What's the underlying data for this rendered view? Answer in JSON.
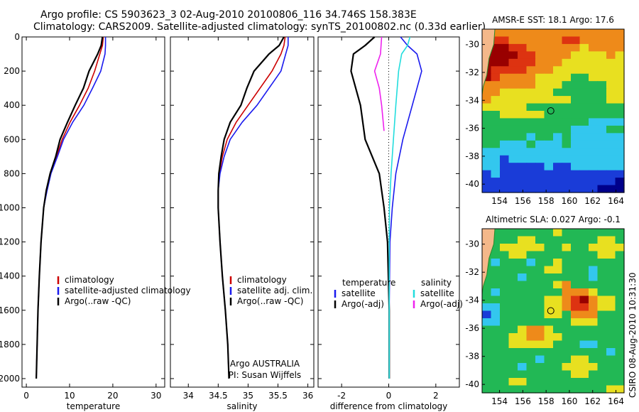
{
  "header": {
    "line1": "Argo profile: CS 5903623_3 02-Aug-2010 20100806_116 34.746S 158.383E",
    "line2": "Climatology: CARS2009. Satellite-adjusted climatology: synTS_20100802.nc (0.33d earlier)"
  },
  "credit": "CSIRO 08-Aug-2010 10:31:30",
  "colors": {
    "red": "#cc0000",
    "blue": "#1a1aee",
    "black": "#000000",
    "cyan": "#22dddd",
    "magenta": "#ee22ee"
  },
  "chart_data": [
    {
      "type": "line",
      "panel": "temperature",
      "xlabel": "temperature",
      "ylabel": "",
      "xlim": [
        -1,
        32
      ],
      "ylim": [
        2050,
        0
      ],
      "xticks": [
        "0",
        "10",
        "20",
        "30"
      ],
      "yticks": [
        "0",
        "200",
        "400",
        "600",
        "800",
        "1000",
        "1200",
        "1400",
        "1600",
        "1800",
        "2000"
      ],
      "legend": [
        "climatology",
        "satellite-adjusted climatology",
        "Argo(..raw -QC)"
      ],
      "series": [
        {
          "name": "climatology",
          "color": "red",
          "x": [
            17.8,
            17.6,
            17.0,
            15.8,
            14.3,
            12.3,
            10.1,
            8.3,
            7.0,
            5.6,
            4.7,
            4.0,
            3.4,
            3.0,
            2.7,
            2.5,
            2.3
          ],
          "y": [
            0,
            50,
            100,
            200,
            300,
            400,
            500,
            600,
            700,
            800,
            900,
            1000,
            1200,
            1400,
            1600,
            1800,
            2000
          ]
        },
        {
          "name": "satellite-adjusted climatology",
          "color": "blue",
          "x": [
            18.3,
            18.3,
            18.2,
            17.2,
            15.3,
            13.3,
            10.7,
            8.6,
            7.2,
            5.7,
            4.8,
            4.0,
            3.4,
            3.0,
            2.7,
            2.5,
            2.3
          ],
          "y": [
            0,
            50,
            100,
            200,
            300,
            400,
            500,
            600,
            700,
            800,
            900,
            1000,
            1200,
            1400,
            1600,
            1800,
            2000
          ]
        },
        {
          "name": "Argo(..raw -QC)",
          "color": "black",
          "x": [
            17.6,
            17.3,
            16.5,
            14.5,
            13.2,
            11.3,
            9.5,
            7.8,
            6.8,
            5.5,
            4.6,
            4.0,
            3.4,
            3.0,
            2.7,
            2.5,
            2.3
          ],
          "y": [
            0,
            50,
            100,
            200,
            300,
            400,
            500,
            600,
            700,
            800,
            900,
            1000,
            1200,
            1400,
            1600,
            1800,
            2000
          ]
        }
      ]
    },
    {
      "type": "line",
      "panel": "salinity",
      "xlabel": "salinity",
      "ylabel": "",
      "xlim": [
        33.7,
        36.1
      ],
      "ylim": [
        2050,
        0
      ],
      "xticks": [
        "34",
        "34.5",
        "35",
        "35.5",
        "36"
      ],
      "legend": [
        "climatology",
        "satellite adj. clim.",
        "Argo(..raw -QC)"
      ],
      "annotations": [
        "Argo AUSTRALIA",
        "PI: Susan Wijffels"
      ],
      "series": [
        {
          "name": "climatology",
          "color": "red",
          "x": [
            35.62,
            35.6,
            35.55,
            35.4,
            35.2,
            35.0,
            34.8,
            34.65,
            34.57,
            34.52,
            34.5,
            34.5,
            34.53,
            34.57,
            34.62,
            34.66,
            34.68
          ],
          "y": [
            0,
            50,
            100,
            200,
            300,
            400,
            500,
            600,
            700,
            800,
            900,
            1000,
            1200,
            1400,
            1600,
            1800,
            2000
          ]
        },
        {
          "name": "satellite adj. clim.",
          "color": "blue",
          "x": [
            35.67,
            35.67,
            35.63,
            35.55,
            35.35,
            35.15,
            34.9,
            34.7,
            34.6,
            34.53,
            34.5,
            34.5,
            34.53,
            34.57,
            34.62,
            34.66,
            34.68
          ],
          "y": [
            0,
            50,
            100,
            200,
            300,
            400,
            500,
            600,
            700,
            800,
            900,
            1000,
            1200,
            1400,
            1600,
            1800,
            2000
          ]
        },
        {
          "name": "Argo(..raw -QC)",
          "color": "black",
          "x": [
            35.6,
            35.52,
            35.35,
            35.1,
            34.98,
            34.88,
            34.7,
            34.6,
            34.55,
            34.51,
            34.5,
            34.5,
            34.53,
            34.57,
            34.62,
            34.66,
            34.68
          ],
          "y": [
            0,
            50,
            100,
            200,
            300,
            400,
            500,
            600,
            700,
            800,
            900,
            1000,
            1200,
            1400,
            1600,
            1800,
            2000
          ]
        }
      ]
    },
    {
      "type": "line",
      "panel": "difference",
      "xlabel": "difference from climatology",
      "ylabel": "",
      "xlim": [
        -3,
        3
      ],
      "ylim": [
        2050,
        0
      ],
      "xticks": [
        "-2",
        "0",
        "2"
      ],
      "legend_groups": [
        {
          "title": "temperature",
          "entries": [
            "satellite",
            "Argo(-adj)"
          ]
        },
        {
          "title": "salinity",
          "entries": [
            "satellite",
            "Argo(-adj)"
          ]
        }
      ],
      "series": [
        {
          "name": "temperature satellite",
          "color": "blue",
          "x": [
            0.5,
            0.8,
            1.2,
            1.4,
            1.0,
            0.6,
            0.3,
            0.15,
            0.05,
            0.02,
            0.02
          ],
          "y": [
            0,
            50,
            100,
            200,
            400,
            600,
            800,
            1000,
            1200,
            1600,
            2000
          ]
        },
        {
          "name": "temperature Argo(-adj)",
          "color": "black",
          "x": [
            -0.6,
            -1.0,
            -1.5,
            -1.6,
            -1.2,
            -1.0,
            -0.4,
            -0.2,
            -0.05,
            0.02,
            0.02
          ],
          "y": [
            0,
            50,
            100,
            200,
            400,
            600,
            800,
            1000,
            1200,
            1600,
            2000
          ]
        },
        {
          "name": "salinity satellite",
          "color": "cyan",
          "x": [
            0.9,
            0.8,
            0.55,
            0.42,
            0.3,
            0.2,
            0.1,
            0.03,
            0.02,
            0.02,
            0.02
          ],
          "y": [
            0,
            50,
            100,
            200,
            400,
            600,
            800,
            1000,
            1200,
            1600,
            2000
          ]
        },
        {
          "name": "salinity Argo(-adj)",
          "color": "magenta",
          "x": [
            -0.3,
            -0.35,
            -0.6,
            -0.4,
            -0.3,
            -0.2
          ],
          "y": [
            0,
            100,
            200,
            300,
            400,
            550
          ]
        }
      ]
    },
    {
      "type": "heatmap",
      "panel": "map-sst",
      "title": "AMSR-E SST: 18.1 Argo: 17.6",
      "xticks": [
        "154",
        "156",
        "158",
        "160",
        "162",
        "164"
      ],
      "yticks": [
        "-30",
        "-32",
        "-34",
        "-36",
        "-38",
        "-40"
      ],
      "xlim": [
        152.5,
        164.7
      ],
      "ylim": [
        -40.6,
        -28.9
      ],
      "marker": [
        158.4,
        -34.75
      ],
      "rows": [
        "oooooooooooooooo",
        "Rrroooooorrooooo",
        "RRRrrooooooyoooo",
        "RRRRrrooooyyyyoy",
        "RRRrrroooyyyyyyy",
        "Rrrrroooyyyyyyyy",
        "Rrooooyyyyggyyyy",
        "ooooooyyygggggyy",
        "ooyyyyyyggggggyy",
        "oyyyyyyyyyggggyy",
        "yyyyyggggggggggg",
        "ggyyyyyggggggggg",
        "ggggggggggggcccc",
        "ggggggggggccccgg",
        "gggggcggcgcccccc",
        "ggcccgcccgcccccc",
        "cccccccccccccccc",
        "ccbccccccccccccc",
        "ccbbbbbcbbcccccc",
        "bcbbbbbbbbbbbbbb",
        "bbbbbbbbbbbbbbbN",
        "bbbbbbbbbbbbbNNN"
      ]
    },
    {
      "type": "heatmap",
      "panel": "map-sla",
      "title": "Altimetric SLA: 0.027 Argo: -0.1",
      "xticks": [
        "154",
        "156",
        "158",
        "160",
        "162",
        "164"
      ],
      "yticks": [
        "-30",
        "-32",
        "-34",
        "-36",
        "-38",
        "-40"
      ],
      "xlim": [
        152.5,
        164.7
      ],
      "ylim": [
        -40.6,
        -28.9
      ],
      "marker": [
        158.4,
        -34.75
      ],
      "rows": [
        "ggggggggyggggggg",
        "ggggyygggggggyyg",
        "ggyyyyyggyggyyyy",
        "gggyyggggggggyyg",
        "gcgggcggyggggggg",
        "gggggggyygggcggg",
        "ggggcgggggggcggg",
        "ggggggggyogggggg",
        "gcgggggggoooyggg",
        "gggggggyyorRoyyg",
        "ccgggggyyorroyyg",
        "bcgggggyygoooggg",
        "ccggggggggyyyggg",
        "ggggyooygggggggg",
        "gggyyooyyggggggg",
        "gggyyyyygggccggg",
        "ggggggggggggggcg",
        "ggggggcgggyygggg",
        "ggggcggggyyyyggg",
        "ggggggggggyygggg",
        "gggyyggggggggggg",
        "ggggggggggggggyy"
      ]
    }
  ]
}
